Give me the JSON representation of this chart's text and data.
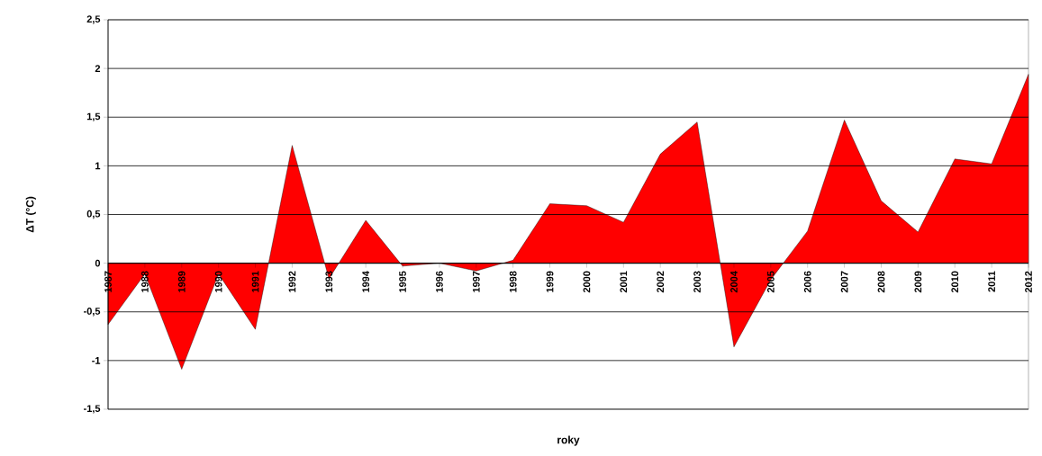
{
  "chart_data": {
    "type": "area",
    "xlabel": "roky",
    "ylabel": "ΔT (°C)",
    "categories": [
      "1987",
      "1988",
      "1989",
      "1990",
      "1991",
      "1992",
      "1993",
      "1994",
      "1995",
      "1996",
      "1997",
      "1998",
      "1999",
      "2000",
      "2001",
      "2002",
      "2003",
      "2004",
      "2005",
      "2006",
      "2007",
      "2008",
      "2009",
      "2010",
      "2011",
      "2012"
    ],
    "values": [
      -0.63,
      -0.11,
      -1.09,
      -0.11,
      -0.68,
      1.21,
      -0.16,
      0.44,
      -0.03,
      0,
      -0.08,
      0.03,
      0.61,
      0.59,
      0.42,
      1.12,
      1.45,
      -0.86,
      -0.17,
      0.33,
      1.47,
      0.64,
      0.32,
      1.07,
      1.02,
      1.94
    ],
    "color": "#ff0000",
    "ylim": [
      -1.5,
      2.5
    ],
    "yticks": [
      {
        "value": -1.5,
        "label": "-1,5"
      },
      {
        "value": -1,
        "label": "-1"
      },
      {
        "value": -0.5,
        "label": "-0,5"
      },
      {
        "value": 0,
        "label": "0"
      },
      {
        "value": 0.5,
        "label": "0,5"
      },
      {
        "value": 1,
        "label": "1"
      },
      {
        "value": 1.5,
        "label": "1,5"
      },
      {
        "value": 2,
        "label": "2"
      },
      {
        "value": 2.5,
        "label": "2,5"
      }
    ],
    "grid": "y"
  }
}
